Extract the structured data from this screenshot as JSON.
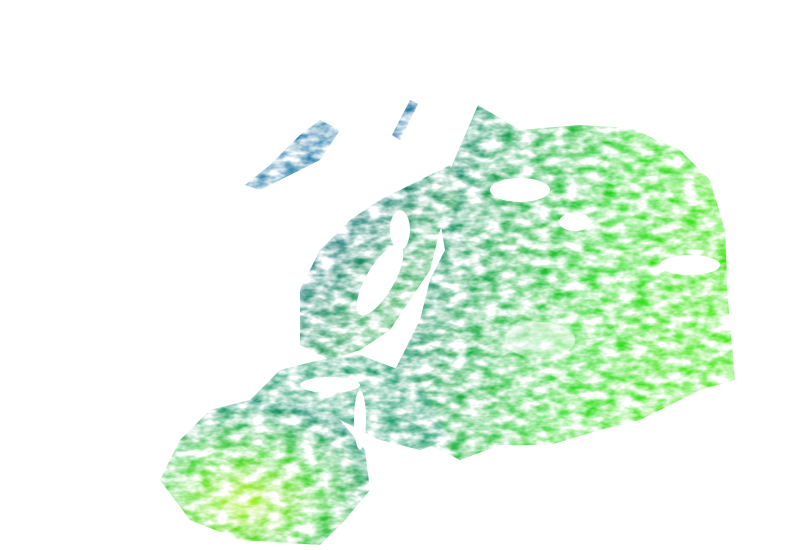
{
  "map": {
    "type": "raster-overlay",
    "colors": {
      "background": "#ffffff",
      "low": "#0a4f9a",
      "mid": "#1aa860",
      "high": "#22e000",
      "peak": "#8ef000"
    }
  }
}
